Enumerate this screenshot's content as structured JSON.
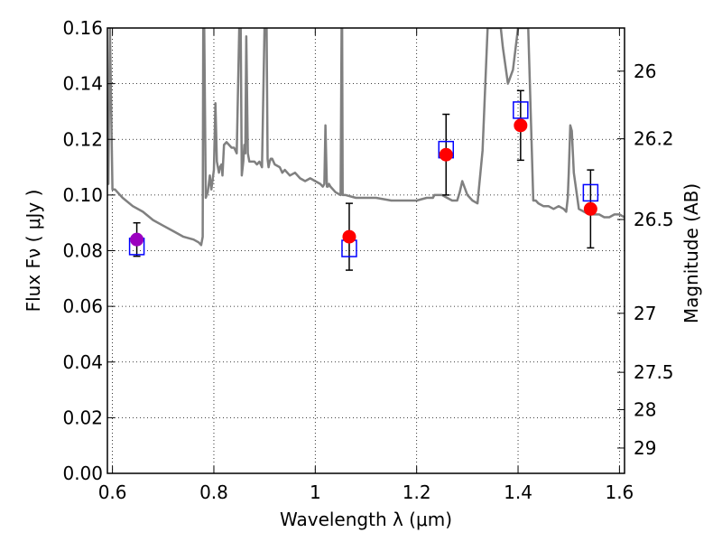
{
  "chart_data": {
    "type": "scatter",
    "xlabel": "Wavelength  λ (μm)",
    "ylabel": "Flux  Fν ( μJy )",
    "y2label": "Magnitude (AB)",
    "xlim": [
      0.59,
      1.61
    ],
    "ylim": [
      0.0,
      0.16
    ],
    "xticks": [
      0.6,
      0.8,
      1.0,
      1.2,
      1.4,
      1.6
    ],
    "xtick_labels": [
      "0.6",
      "0.8",
      "1",
      "1.2",
      "1.4",
      "1.6"
    ],
    "yticks": [
      0.0,
      0.02,
      0.04,
      0.06,
      0.08,
      0.1,
      0.12,
      0.14,
      0.16
    ],
    "ytick_labels": [
      "0.00",
      "0.02",
      "0.04",
      "0.06",
      "0.08",
      "0.10",
      "0.12",
      "0.14",
      "0.16"
    ],
    "y2ticks": [
      {
        "label": "26",
        "flux": 0.1445
      },
      {
        "label": "26.2",
        "flux": 0.1202
      },
      {
        "label": "26.5",
        "flux": 0.0912
      },
      {
        "label": "27",
        "flux": 0.0575
      },
      {
        "label": "27.5",
        "flux": 0.0363
      },
      {
        "label": "28",
        "flux": 0.0229
      },
      {
        "label": "29",
        "flux": 0.0091
      }
    ],
    "grid": true,
    "colors": {
      "model": "#808080",
      "observed": "#ff0000",
      "first_point": "#9b00bf",
      "model_box": "#0000ff",
      "errorbar": "#000000",
      "grid": "#000000"
    },
    "observed": [
      {
        "x": 0.648,
        "y": 0.084,
        "err": 0.006
      },
      {
        "x": 1.067,
        "y": 0.085,
        "err": 0.012
      },
      {
        "x": 1.258,
        "y": 0.1145,
        "err": 0.0145
      },
      {
        "x": 1.405,
        "y": 0.125,
        "err": 0.0125
      },
      {
        "x": 1.543,
        "y": 0.095,
        "err": 0.014
      }
    ],
    "model_photometry": [
      {
        "x": 0.648,
        "y": 0.0815
      },
      {
        "x": 1.067,
        "y": 0.0808
      },
      {
        "x": 1.258,
        "y": 0.1163
      },
      {
        "x": 1.405,
        "y": 0.1305
      },
      {
        "x": 1.543,
        "y": 0.1008
      }
    ],
    "model_spectrum": {
      "x": [
        0.59,
        0.592,
        0.593,
        0.595,
        0.6,
        0.605,
        0.61,
        0.62,
        0.64,
        0.66,
        0.68,
        0.7,
        0.72,
        0.74,
        0.76,
        0.77,
        0.775,
        0.778,
        0.779,
        0.781,
        0.784,
        0.788,
        0.792,
        0.795,
        0.798,
        0.8,
        0.803,
        0.806,
        0.81,
        0.812,
        0.815,
        0.817,
        0.82,
        0.825,
        0.83,
        0.835,
        0.84,
        0.845,
        0.85,
        0.853,
        0.855,
        0.858,
        0.86,
        0.862,
        0.864,
        0.867,
        0.87,
        0.875,
        0.88,
        0.885,
        0.89,
        0.895,
        0.9,
        0.904,
        0.906,
        0.908,
        0.91,
        0.912,
        0.915,
        0.92,
        0.93,
        0.935,
        0.94,
        0.95,
        0.96,
        0.97,
        0.98,
        0.99,
        1.0,
        1.01,
        1.015,
        1.018,
        1.02,
        1.023,
        1.025,
        1.027,
        1.03,
        1.04,
        1.05,
        1.052,
        1.053,
        1.054,
        1.056,
        1.06,
        1.08,
        1.1,
        1.12,
        1.15,
        1.18,
        1.2,
        1.22,
        1.23,
        1.232,
        1.235,
        1.24,
        1.25,
        1.26,
        1.27,
        1.28,
        1.285,
        1.29,
        1.3,
        1.31,
        1.32,
        1.33,
        1.34,
        1.35,
        1.36,
        1.364,
        1.366,
        1.37,
        1.38,
        1.39,
        1.4,
        1.405,
        1.41,
        1.415,
        1.42,
        1.43,
        1.435,
        1.44,
        1.45,
        1.46,
        1.47,
        1.48,
        1.49,
        1.495,
        1.498,
        1.5,
        1.503,
        1.506,
        1.51,
        1.52,
        1.53,
        1.54,
        1.55,
        1.56,
        1.57,
        1.58,
        1.59,
        1.6,
        1.61
      ],
      "y": [
        0.104,
        0.104,
        0.13,
        0.16,
        0.102,
        0.102,
        0.101,
        0.099,
        0.096,
        0.094,
        0.091,
        0.089,
        0.087,
        0.085,
        0.084,
        0.083,
        0.082,
        0.085,
        0.16,
        0.16,
        0.099,
        0.101,
        0.107,
        0.102,
        0.106,
        0.109,
        0.133,
        0.112,
        0.108,
        0.11,
        0.111,
        0.107,
        0.118,
        0.119,
        0.118,
        0.117,
        0.117,
        0.115,
        0.16,
        0.16,
        0.107,
        0.112,
        0.118,
        0.115,
        0.157,
        0.115,
        0.112,
        0.112,
        0.112,
        0.111,
        0.112,
        0.11,
        0.16,
        0.16,
        0.113,
        0.11,
        0.112,
        0.113,
        0.113,
        0.111,
        0.11,
        0.108,
        0.109,
        0.107,
        0.108,
        0.106,
        0.105,
        0.106,
        0.105,
        0.104,
        0.103,
        0.104,
        0.125,
        0.103,
        0.103,
        0.104,
        0.103,
        0.101,
        0.1,
        0.16,
        0.16,
        0.1,
        0.1,
        0.1,
        0.099,
        0.099,
        0.099,
        0.098,
        0.098,
        0.098,
        0.099,
        0.099,
        0.099,
        0.1,
        0.1,
        0.1,
        0.099,
        0.098,
        0.098,
        0.101,
        0.105,
        0.1,
        0.098,
        0.097,
        0.116,
        0.16,
        0.16,
        0.16,
        0.16,
        0.16,
        0.153,
        0.14,
        0.145,
        0.16,
        0.16,
        0.16,
        0.16,
        0.16,
        0.098,
        0.098,
        0.097,
        0.096,
        0.096,
        0.095,
        0.096,
        0.095,
        0.094,
        0.099,
        0.108,
        0.125,
        0.123,
        0.108,
        0.095,
        0.094,
        0.093,
        0.093,
        0.093,
        0.092,
        0.092,
        0.093,
        0.093,
        0.092
      ]
    }
  }
}
